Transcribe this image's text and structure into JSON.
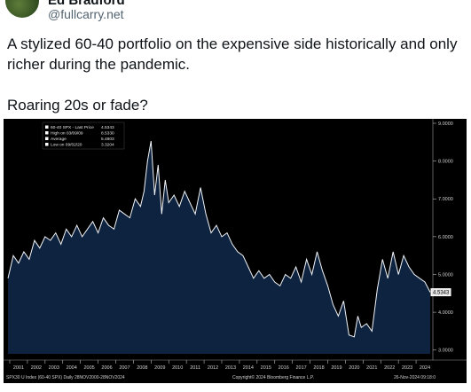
{
  "author": {
    "name": "Ed Bradford",
    "handle": "@fullcarry.net"
  },
  "tweet": {
    "text1": "A stylized 60-40 portfolio on the expensive side historically and only richer during the pandemic.",
    "text2": "Roaring 20s or fade?"
  },
  "chart_data": {
    "type": "area",
    "legend": [
      {
        "label": "60-40 SPX - Last Price",
        "value": "4.5343"
      },
      {
        "label": "High on 03/09/09",
        "value": "8.5330"
      },
      {
        "label": "Average",
        "value": "5.4803"
      },
      {
        "label": "Low on 09/02/20",
        "value": "3.3204"
      }
    ],
    "y_ticks": [
      "9.0000",
      "8.0000",
      "7.0000",
      "6.0000",
      "5.0000",
      "4.0000",
      "3.0000"
    ],
    "ylim": [
      2.9,
      9.0
    ],
    "x_ticks": [
      "2001",
      "2002",
      "2003",
      "2004",
      "2005",
      "2006",
      "2007",
      "2008",
      "2009",
      "2010",
      "2011",
      "2012",
      "2013",
      "2014",
      "2015",
      "2016",
      "2017",
      "2018",
      "2019",
      "2020",
      "2021",
      "2022",
      "2023",
      "2024"
    ],
    "last_value_label": "4.5343",
    "series": [
      {
        "x": [
          2000.9,
          2001.2,
          2001.5,
          2001.8,
          2002.1,
          2002.4,
          2002.7,
          2003.0,
          2003.3,
          2003.6,
          2003.9,
          2004.2,
          2004.5,
          2004.8,
          2005.1,
          2005.4,
          2005.7,
          2006.0,
          2006.3,
          2006.6,
          2006.9,
          2007.2,
          2007.5,
          2007.8,
          2008.1,
          2008.4,
          2008.6,
          2008.8,
          2009.0,
          2009.2,
          2009.4,
          2009.6,
          2009.8,
          2010.0,
          2010.3,
          2010.6,
          2010.9,
          2011.2,
          2011.5,
          2011.8,
          2012.1,
          2012.4,
          2012.7,
          2013.0,
          2013.3,
          2013.6,
          2013.9,
          2014.2,
          2014.5,
          2014.8,
          2015.1,
          2015.4,
          2015.7,
          2016.0,
          2016.3,
          2016.6,
          2016.9,
          2017.2,
          2017.5,
          2017.8,
          2018.1,
          2018.4,
          2018.7,
          2019.0,
          2019.3,
          2019.6,
          2019.9,
          2020.2,
          2020.5,
          2020.7,
          2020.9,
          2021.2,
          2021.5,
          2021.8,
          2022.1,
          2022.4,
          2022.7,
          2023.0,
          2023.3,
          2023.6,
          2023.9,
          2024.2,
          2024.5,
          2024.8
        ],
        "values": [
          4.9,
          5.5,
          5.3,
          5.6,
          5.4,
          5.9,
          5.7,
          6.0,
          5.9,
          6.1,
          5.8,
          6.2,
          6.0,
          6.3,
          6.0,
          6.2,
          6.4,
          6.1,
          6.5,
          6.3,
          6.2,
          6.7,
          6.6,
          6.5,
          7.0,
          6.8,
          7.2,
          8.0,
          8.53,
          7.1,
          7.9,
          6.6,
          7.5,
          6.9,
          7.1,
          6.8,
          7.2,
          6.9,
          6.6,
          7.3,
          6.6,
          6.1,
          6.3,
          6.0,
          6.1,
          5.8,
          5.6,
          5.5,
          5.2,
          4.9,
          5.1,
          4.9,
          5.0,
          4.8,
          4.7,
          5.0,
          4.9,
          5.2,
          4.8,
          5.4,
          5.0,
          5.6,
          5.1,
          4.7,
          4.2,
          3.9,
          4.3,
          3.4,
          3.35,
          3.9,
          3.6,
          3.7,
          3.5,
          4.6,
          5.4,
          4.9,
          5.6,
          5.0,
          5.5,
          5.2,
          5.0,
          4.9,
          4.8,
          4.53
        ]
      }
    ]
  },
  "footer": {
    "left": "SPX30 U Index (60-40 SPX)  Daily 28NOV2000-28NOV2024",
    "center": "Copyright© 2024 Bloomberg Finance L.P.",
    "right": "26-Nov-2024 09:18:0"
  }
}
